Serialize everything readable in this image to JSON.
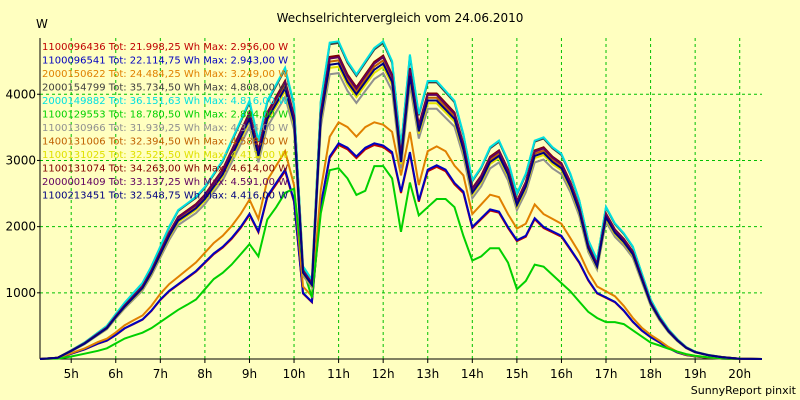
{
  "chart_data": {
    "type": "line",
    "title": "Wechselrichtervergleich vom 24.06.2010",
    "ylabel": "W",
    "xlabel": "",
    "footer": "SunnyReport pinxit",
    "ylim": [
      0,
      4850
    ],
    "xlim": [
      4.3,
      20.5
    ],
    "yticks": [
      1000,
      2000,
      3000,
      4000
    ],
    "xtick_labels": [
      "5h",
      "6h",
      "7h",
      "8h",
      "9h",
      "10h",
      "11h",
      "12h",
      "13h",
      "14h",
      "15h",
      "16h",
      "17h",
      "18h",
      "19h",
      "20h"
    ],
    "grid": true,
    "legend_placement": "top-left",
    "series": [
      {
        "label": "1100096436 Tot: 21.998,25 Wh Max: 2.956,00 W",
        "color": "#c00000",
        "style": "A",
        "scale": 0.66
      },
      {
        "label": "1100096541 Tot: 22.114,75 Wh Max: 2.943,00 W",
        "color": "#0000c0",
        "style": "A",
        "scale": 0.665
      },
      {
        "label": "2000150622 Tot: 24.484,25 Wh Max: 3.249,00 W",
        "color": "#e08000",
        "style": "A",
        "scale": 0.73
      },
      {
        "label": "2000154799 Tot: 35.734,50 Wh Max: 4.808,00 W",
        "color": "#404040",
        "style": "B",
        "scale": 0.995
      },
      {
        "label": "2000149882 Tot: 36.151,63 Wh Max: 4.816,00 W",
        "color": "#00e0e0",
        "style": "B",
        "scale": 1.0
      },
      {
        "label": "1100129553 Tot: 18.780,50 Wh Max: 2.894,00 W",
        "color": "#00d000",
        "style": "C",
        "scale": 0.62
      },
      {
        "label": "1100130966 Tot: 31.939,25 Wh Max: 4.314,00 W",
        "color": "#909090",
        "style": "B",
        "scale": 0.9
      },
      {
        "label": "1400131006 Tot: 32.394,50 Wh Max: 4.588,00 W",
        "color": "#c06000",
        "style": "B",
        "scale": 0.94
      },
      {
        "label": "1100131025 Tot: 32.525,50 Wh Max: 4.411,00 W",
        "color": "#e0e000",
        "style": "B",
        "scale": 0.92
      },
      {
        "label": "1100131074 Tot: 34.263,00 Wh Max: 4.614,00 W",
        "color": "#800000",
        "style": "B",
        "scale": 0.955
      },
      {
        "label": "2000001409 Tot: 33.137,25 Wh Max: 4.591,00 W",
        "color": "#600060",
        "style": "B",
        "scale": 0.95
      },
      {
        "label": "1100213451 Tot: 32.548,75 Wh Max: 4.416,00 W",
        "color": "#000080",
        "style": "B",
        "scale": 0.93
      }
    ],
    "base_profiles": {
      "x": [
        4.3,
        4.7,
        5.0,
        5.3,
        5.6,
        5.8,
        6.0,
        6.2,
        6.4,
        6.6,
        6.8,
        7.0,
        7.2,
        7.4,
        7.6,
        7.8,
        8.0,
        8.2,
        8.4,
        8.6,
        8.8,
        9.0,
        9.2,
        9.4,
        9.6,
        9.8,
        10.0,
        10.2,
        10.4,
        10.6,
        10.8,
        11.0,
        11.2,
        11.4,
        11.6,
        11.8,
        12.0,
        12.2,
        12.4,
        12.6,
        12.8,
        13.0,
        13.2,
        13.4,
        13.6,
        13.8,
        14.0,
        14.2,
        14.4,
        14.6,
        14.8,
        15.0,
        15.2,
        15.4,
        15.6,
        15.8,
        16.0,
        16.2,
        16.4,
        16.6,
        16.8,
        17.0,
        17.2,
        17.4,
        17.6,
        17.8,
        18.0,
        18.2,
        18.4,
        18.6,
        18.8,
        19.0,
        19.3,
        19.6,
        20.0,
        20.5
      ],
      "A": [
        0,
        20,
        120,
        220,
        350,
        420,
        550,
        700,
        800,
        900,
        1100,
        1350,
        1550,
        1700,
        1850,
        2000,
        2200,
        2400,
        2550,
        2750,
        3000,
        3300,
        2900,
        3700,
        4000,
        4300,
        3600,
        1500,
        1300,
        3500,
        4600,
        4900,
        4800,
        4600,
        4800,
        4900,
        4850,
        4700,
        3800,
        4700,
        3600,
        4300,
        4400,
        4300,
        4000,
        3800,
        3000,
        3200,
        3400,
        3350,
        3000,
        2700,
        2800,
        3200,
        3000,
        2900,
        2800,
        2500,
        2200,
        1800,
        1500,
        1400,
        1300,
        1100,
        850,
        650,
        500,
        380,
        250,
        150,
        90,
        60,
        30,
        10,
        0,
        0
      ],
      "B": [
        0,
        20,
        130,
        250,
        400,
        500,
        680,
        850,
        1000,
        1150,
        1400,
        1700,
        2000,
        2250,
        2350,
        2450,
        2600,
        2800,
        3000,
        3300,
        3600,
        3900,
        3300,
        3900,
        4150,
        4400,
        3850,
        1400,
        1200,
        3900,
        4780,
        4800,
        4500,
        4300,
        4500,
        4700,
        4800,
        4500,
        3200,
        4600,
        3700,
        4200,
        4200,
        4050,
        3900,
        3400,
        2700,
        2900,
        3200,
        3300,
        3000,
        2500,
        2800,
        3300,
        3350,
        3200,
        3100,
        2800,
        2400,
        1800,
        1500,
        2300,
        2050,
        1900,
        1700,
        1300,
        900,
        650,
        450,
        300,
        180,
        110,
        60,
        30,
        5,
        0
      ],
      "C": [
        0,
        10,
        60,
        130,
        200,
        260,
        380,
        500,
        570,
        640,
        750,
        900,
        1050,
        1200,
        1320,
        1450,
        1700,
        1950,
        2100,
        2300,
        2550,
        2800,
        2500,
        3400,
        3700,
        4050,
        4150,
        2200,
        1500,
        3550,
        4600,
        4650,
        4400,
        4000,
        4100,
        4700,
        4700,
        4400,
        3100,
        4300,
        3500,
        3700,
        3900,
        3900,
        3700,
        3000,
        2400,
        2500,
        2700,
        2700,
        2350,
        1700,
        1900,
        2300,
        2250,
        2050,
        1850,
        1650,
        1400,
        1150,
        1000,
        900,
        900,
        850,
        700,
        550,
        400,
        330,
        250,
        180,
        120,
        80,
        40,
        15,
        0,
        0
      ]
    }
  }
}
